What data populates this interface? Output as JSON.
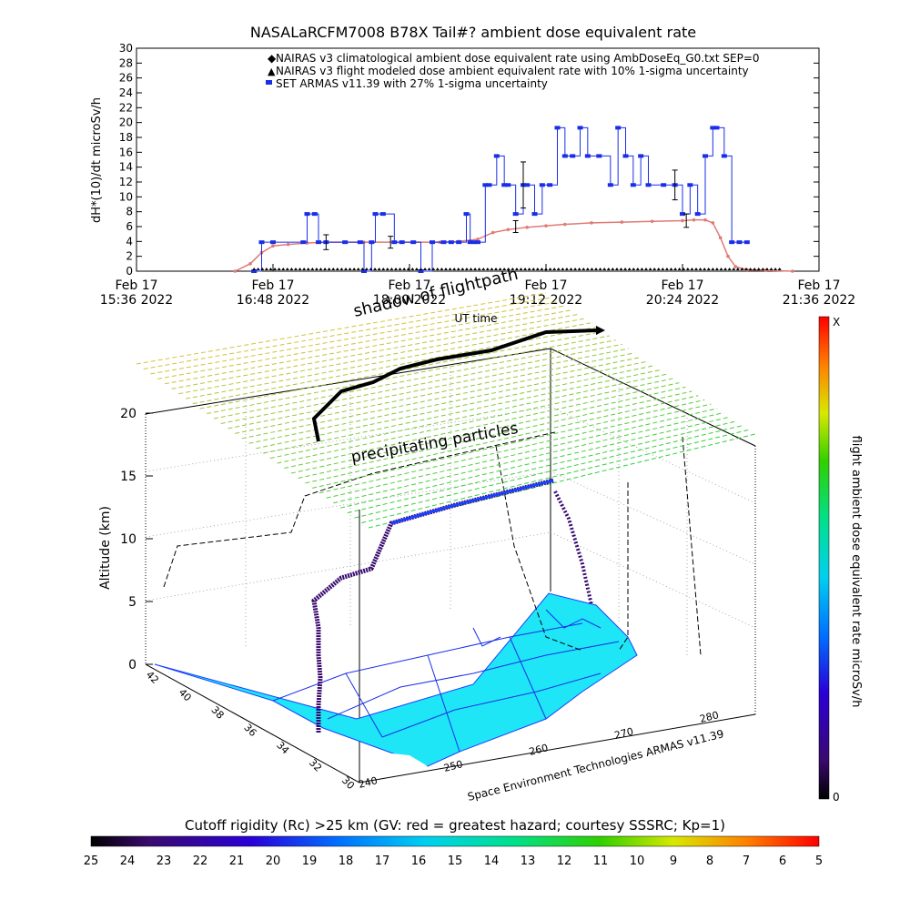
{
  "title": "NASALaRCFM7008  B78X Tail#? ambient dose equivalent rate",
  "top_chart": {
    "ylabel": "dH*(10)/dt microSv/h",
    "legend": [
      "NAIRAS v3 climatological ambient dose equivalent rate using AmbDoseEq_G0.txt SEP=0",
      "NAIRAS v3 flight modeled dose ambient equivalent rate with 10% 1-sigma uncertainty",
      "SET ARMAS v11.39 with 27% 1-sigma uncertainty"
    ],
    "x_ticks": [
      {
        "t": 0,
        "l1": "Feb 17",
        "l2": "15:36 2022"
      },
      {
        "t": 72,
        "l1": "Feb 17",
        "l2": "16:48 2022"
      },
      {
        "t": 144,
        "l1": "Feb 17",
        "l2": "18:00 2022"
      },
      {
        "t": 216,
        "l1": "Feb 17",
        "l2": "19:12 2022"
      },
      {
        "t": 288,
        "l1": "Feb 17",
        "l2": "20:24 2022"
      },
      {
        "t": 360,
        "l1": "Feb 17",
        "l2": "21:36 2022"
      }
    ],
    "xlabel": "UT time",
    "colors": {
      "climatological": "#e07a74",
      "modeled": "#000000",
      "armas": "#1a2ee8"
    }
  },
  "chart_data": {
    "type": "line",
    "title": "NASALaRCFM7008  B78X Tail#? ambient dose equivalent rate",
    "xlabel": "UT time",
    "ylabel": "dH*(10)/dt microSv/h",
    "x_unit": "minutes after Feb 17 15:36 2022",
    "xlim": [
      0,
      360
    ],
    "ylim": [
      0,
      30
    ],
    "y_ticks": [
      0,
      2,
      4,
      6,
      8,
      10,
      12,
      14,
      16,
      18,
      20,
      22,
      24,
      26,
      28,
      30
    ],
    "series": [
      {
        "name": "NAIRAS v3 climatological ambient dose equivalent rate using AmbDoseEq_G0.txt SEP=0",
        "x": [
          52,
          60,
          66,
          72,
          80,
          90,
          100,
          120,
          140,
          160,
          170,
          180,
          188,
          196,
          206,
          216,
          226,
          240,
          256,
          272,
          288,
          294,
          300,
          304,
          308,
          312,
          316,
          322,
          332,
          346
        ],
        "y": [
          0,
          1,
          2.5,
          3.4,
          3.6,
          3.8,
          3.9,
          3.9,
          3.9,
          3.9,
          4.0,
          4.3,
          5.2,
          5.6,
          5.9,
          6.1,
          6.3,
          6.5,
          6.6,
          6.7,
          6.8,
          6.9,
          6.9,
          6.5,
          4.5,
          2,
          0.6,
          0.2,
          0.1,
          0
        ]
      },
      {
        "name": "NAIRAS v3 flight modeled dose ambient equivalent rate with 10% 1-sigma uncertainty",
        "x": [
          60,
          134,
          200,
          290
        ],
        "y": [
          0,
          3.9,
          6.0,
          6.8
        ],
        "yerr": [
          0,
          0.8,
          0.8,
          0.9
        ]
      },
      {
        "name": "SET ARMAS v11.39 with 27% 1-sigma uncertainty",
        "x": [
          62,
          66,
          72,
          88,
          90,
          94,
          96,
          100,
          110,
          118,
          120,
          124,
          126,
          130,
          136,
          140,
          146,
          150,
          156,
          162,
          166,
          170,
          174,
          176,
          178,
          180,
          184,
          186,
          190,
          194,
          196,
          200,
          204,
          206,
          210,
          214,
          218,
          222,
          226,
          230,
          234,
          238,
          244,
          250,
          254,
          258,
          262,
          266,
          270,
          278,
          284,
          288,
          292,
          296,
          300,
          304,
          306,
          310,
          314,
          318,
          322
        ],
        "y": [
          0,
          3.9,
          3.9,
          3.9,
          7.7,
          7.7,
          3.9,
          3.9,
          3.9,
          3.9,
          0,
          3.9,
          7.7,
          7.7,
          3.9,
          3.9,
          3.9,
          0,
          3.9,
          3.9,
          3.9,
          3.9,
          7.7,
          3.9,
          3.9,
          3.9,
          11.6,
          11.6,
          15.5,
          11.6,
          11.6,
          7.7,
          11.6,
          11.6,
          7.7,
          11.6,
          11.6,
          19.3,
          15.5,
          15.5,
          19.3,
          15.5,
          15.5,
          11.6,
          19.3,
          15.5,
          11.6,
          15.5,
          11.6,
          11.6,
          11.6,
          7.7,
          11.6,
          7.7,
          15.5,
          19.3,
          19.3,
          15.5,
          3.9,
          3.9,
          3.9
        ],
        "yerr": [
          0,
          0,
          0,
          0,
          0,
          0,
          0,
          1.0,
          0,
          0,
          0,
          0,
          0,
          0,
          0,
          0,
          0,
          0,
          0,
          0,
          0,
          0,
          0,
          0,
          0,
          0,
          0,
          0,
          0,
          0,
          0,
          0,
          3.1,
          0,
          0,
          0,
          0,
          0,
          0,
          0,
          0,
          0,
          0,
          0,
          0,
          0,
          0,
          0,
          0,
          0,
          2.0,
          0,
          0,
          0,
          0,
          0,
          0,
          0,
          0,
          0,
          0
        ]
      }
    ]
  },
  "scene": {
    "annotations": [
      "shadow of flightpath",
      "precipitating particles"
    ],
    "z_axis_label": "Altitude (km)",
    "z_ticks": [
      0,
      5,
      10,
      15,
      20
    ],
    "lat_ticks": [
      42,
      40,
      38,
      36,
      34,
      32,
      30
    ],
    "lon_ticks": [
      240,
      250,
      260,
      270,
      280
    ],
    "credit": "Space Environment Technologies ARMAS v11.39",
    "colorbar_label": "flight ambient dose equivalent rate microSv/h",
    "colorbar_top": "X",
    "colorbar_bottom": "0",
    "cutoff_label": "Cutoff rigidity (Rc) >25 km (GV: red = greatest hazard; courtesy SSSRC; Kp=1)",
    "cutoff_ticks": [
      25,
      24,
      23,
      22,
      21,
      20,
      19,
      18,
      17,
      16,
      15,
      14,
      13,
      12,
      11,
      10,
      9,
      8,
      7,
      6,
      5
    ]
  }
}
